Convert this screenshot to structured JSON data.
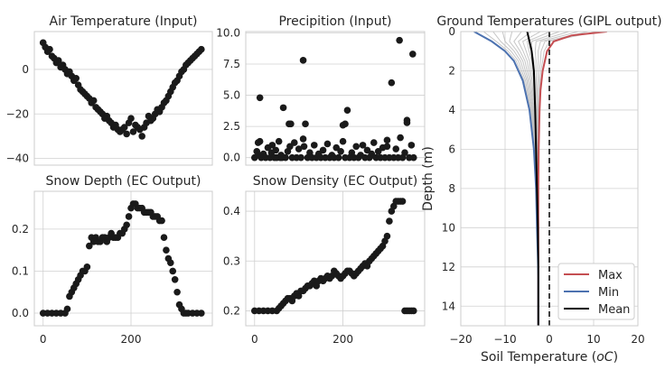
{
  "chart_data": [
    {
      "id": "air",
      "type": "scatter",
      "title": "Air Temperature (Input)",
      "xlabel": "",
      "ylabel": "",
      "xlim": [
        -20,
        385
      ],
      "ylim": [
        -43,
        17
      ],
      "xticks": [],
      "yticks": [
        0,
        -20,
        -40
      ],
      "ytick_labels": [
        "0",
        "−20",
        "−40"
      ],
      "x": [
        0,
        5,
        10,
        15,
        20,
        25,
        30,
        35,
        40,
        45,
        50,
        55,
        60,
        65,
        70,
        75,
        80,
        85,
        90,
        95,
        100,
        105,
        110,
        115,
        120,
        125,
        130,
        135,
        140,
        145,
        150,
        155,
        160,
        165,
        170,
        175,
        180,
        185,
        190,
        195,
        200,
        205,
        210,
        215,
        220,
        225,
        230,
        235,
        240,
        245,
        250,
        255,
        260,
        265,
        270,
        275,
        280,
        285,
        290,
        295,
        300,
        305,
        310,
        315,
        320,
        325,
        330,
        335,
        340,
        345,
        350,
        355,
        360
      ],
      "y": [
        12,
        10,
        8,
        9,
        6,
        5,
        3,
        4,
        1,
        2,
        0,
        -2,
        -1,
        -3,
        -5,
        -4,
        -7,
        -9,
        -10,
        -11,
        -12,
        -13,
        -15,
        -14,
        -17,
        -18,
        -19,
        -20,
        -22,
        -21,
        -23,
        -24,
        -26,
        -25,
        -27,
        -28,
        -27,
        -26,
        -29,
        -24,
        -22,
        -28,
        -25,
        -26,
        -27,
        -30,
        -26,
        -24,
        -21,
        -23,
        -22,
        -20,
        -18,
        -19,
        -17,
        -15,
        -14,
        -12,
        -10,
        -8,
        -6,
        -5,
        -3,
        -1,
        0,
        2,
        3,
        4,
        5,
        6,
        7,
        8,
        9
      ],
      "color": "#1a1a1a"
    },
    {
      "id": "precip",
      "type": "scatter",
      "title": "Precipition (Input)",
      "xlabel": "",
      "ylabel": "",
      "xlim": [
        -20,
        385
      ],
      "ylim": [
        -0.6,
        10.1
      ],
      "xticks": [],
      "yticks": [
        0.0,
        2.5,
        5.0,
        7.5,
        10.0
      ],
      "ytick_labels": [
        "0.0",
        "2.5",
        "5.0",
        "7.5",
        "10.0"
      ],
      "x": [
        0,
        5,
        8,
        10,
        12,
        15,
        20,
        25,
        30,
        35,
        38,
        40,
        45,
        48,
        50,
        55,
        58,
        60,
        62,
        65,
        70,
        75,
        80,
        85,
        90,
        95,
        100,
        105,
        110,
        115,
        120,
        125,
        130,
        135,
        140,
        145,
        150,
        155,
        160,
        165,
        170,
        175,
        180,
        185,
        190,
        195,
        200,
        205,
        210,
        215,
        220,
        225,
        230,
        235,
        240,
        245,
        250,
        255,
        260,
        265,
        270,
        275,
        280,
        285,
        290,
        295,
        300,
        305,
        310,
        315,
        320,
        325,
        330,
        335,
        340,
        345,
        350,
        355,
        360,
        12,
        78,
        82,
        110,
        112,
        200,
        205,
        300,
        328,
        345,
        358
      ],
      "y": [
        0,
        0.5,
        1.2,
        0.2,
        4.8,
        0,
        0.3,
        0,
        0.8,
        0,
        0.4,
        1.0,
        0,
        0.6,
        0,
        1.3,
        0,
        0.2,
        0,
        4.0,
        0,
        0.5,
        0.9,
        0,
        1.2,
        0,
        0.7,
        0,
        1.5,
        2.7,
        0,
        0.4,
        0,
        1.0,
        0,
        0.3,
        0,
        0.6,
        0,
        1.1,
        0,
        0.2,
        0,
        0.8,
        0,
        0.5,
        1.3,
        0,
        3.8,
        0,
        0.4,
        0,
        0.9,
        0,
        0.2,
        1.0,
        0,
        0.6,
        0,
        0.3,
        1.2,
        0,
        0.5,
        0,
        0.8,
        0,
        1.4,
        0,
        6.0,
        0,
        0.7,
        0,
        1.6,
        0,
        0.4,
        2.8,
        0,
        1.0,
        0,
        1.3,
        2.7,
        2.7,
        7.8,
        0.9,
        2.6,
        2.7,
        0.9,
        9.4,
        3.0,
        8.3
      ],
      "color": "#1a1a1a"
    },
    {
      "id": "snowdepth",
      "type": "scatter",
      "title": "Snow Depth (EC Output)",
      "xlabel": "",
      "ylabel": "",
      "xlim": [
        -20,
        385
      ],
      "ylim": [
        -0.03,
        0.29
      ],
      "xticks": [
        0,
        200
      ],
      "xtick_labels": [
        "0",
        "200"
      ],
      "yticks": [
        0.0,
        0.1,
        0.2
      ],
      "ytick_labels": [
        "0.0",
        "0.1",
        "0.2"
      ],
      "x": [
        0,
        10,
        20,
        30,
        40,
        50,
        55,
        60,
        65,
        70,
        75,
        80,
        85,
        90,
        95,
        100,
        105,
        110,
        115,
        120,
        125,
        130,
        135,
        140,
        145,
        150,
        155,
        160,
        165,
        170,
        175,
        180,
        185,
        190,
        195,
        200,
        205,
        210,
        215,
        220,
        225,
        230,
        235,
        240,
        245,
        250,
        255,
        260,
        265,
        270,
        275,
        280,
        285,
        290,
        295,
        300,
        305,
        310,
        315,
        320,
        325,
        330,
        340,
        350,
        360
      ],
      "y": [
        0,
        0,
        0,
        0,
        0,
        0,
        0.01,
        0.04,
        0.05,
        0.06,
        0.07,
        0.08,
        0.09,
        0.1,
        0.1,
        0.11,
        0.16,
        0.18,
        0.17,
        0.18,
        0.17,
        0.17,
        0.18,
        0.18,
        0.17,
        0.18,
        0.19,
        0.18,
        0.18,
        0.18,
        0.19,
        0.19,
        0.2,
        0.21,
        0.23,
        0.25,
        0.26,
        0.26,
        0.25,
        0.25,
        0.25,
        0.24,
        0.24,
        0.24,
        0.24,
        0.23,
        0.23,
        0.23,
        0.22,
        0.22,
        0.18,
        0.15,
        0.13,
        0.12,
        0.1,
        0.08,
        0.05,
        0.02,
        0.01,
        0,
        0,
        0,
        0,
        0,
        0
      ],
      "color": "#1a1a1a"
    },
    {
      "id": "snowdensity",
      "type": "scatter",
      "title": "Snow Density (EC Output)",
      "xlabel": "",
      "ylabel": "",
      "xlim": [
        -20,
        385
      ],
      "ylim": [
        0.17,
        0.44
      ],
      "xticks": [
        0,
        200
      ],
      "xtick_labels": [
        "0",
        "200"
      ],
      "yticks": [
        0.2,
        0.3,
        0.4
      ],
      "ytick_labels": [
        "0.2",
        "0.3",
        "0.4"
      ],
      "x": [
        0,
        10,
        20,
        30,
        40,
        50,
        55,
        60,
        65,
        70,
        75,
        80,
        85,
        90,
        95,
        100,
        105,
        110,
        115,
        120,
        125,
        130,
        135,
        140,
        145,
        150,
        155,
        160,
        165,
        170,
        175,
        180,
        185,
        190,
        195,
        200,
        205,
        210,
        215,
        220,
        225,
        230,
        235,
        240,
        245,
        250,
        255,
        260,
        265,
        270,
        275,
        280,
        285,
        290,
        295,
        300,
        305,
        310,
        315,
        320,
        325,
        330,
        335,
        340,
        345,
        350,
        355,
        360
      ],
      "y": [
        0.2,
        0.2,
        0.2,
        0.2,
        0.2,
        0.2,
        0.205,
        0.21,
        0.215,
        0.22,
        0.225,
        0.225,
        0.22,
        0.23,
        0.235,
        0.23,
        0.24,
        0.24,
        0.245,
        0.25,
        0.25,
        0.255,
        0.26,
        0.25,
        0.26,
        0.265,
        0.26,
        0.265,
        0.27,
        0.265,
        0.27,
        0.28,
        0.275,
        0.27,
        0.265,
        0.27,
        0.275,
        0.28,
        0.28,
        0.275,
        0.27,
        0.275,
        0.28,
        0.285,
        0.29,
        0.295,
        0.29,
        0.3,
        0.305,
        0.31,
        0.315,
        0.32,
        0.325,
        0.33,
        0.34,
        0.35,
        0.38,
        0.4,
        0.41,
        0.42,
        0.42,
        0.42,
        0.42,
        0.2,
        0.2,
        0.2,
        0.2,
        0.2
      ],
      "color": "#1a1a1a"
    },
    {
      "id": "ground",
      "type": "line",
      "title": "Ground Temperatures (GIPL output)",
      "xlabel": "Soil Temperature (",
      "xlabel_unit": "oC",
      "xlabel_end": ")",
      "ylabel": "Depth (m)",
      "xlim": [
        -20,
        20
      ],
      "ylim": [
        15,
        0
      ],
      "xticks": [
        -20,
        -10,
        0,
        10,
        20
      ],
      "xtick_labels": [
        "−20",
        "−10",
        "0",
        "10",
        "20"
      ],
      "yticks": [
        0,
        2,
        4,
        6,
        8,
        10,
        12,
        14
      ],
      "ytick_labels": [
        "0",
        "2",
        "4",
        "6",
        "8",
        "10",
        "12",
        "14"
      ],
      "legend_position": "lower-right",
      "series": [
        {
          "name": "Max",
          "color": "#c44e52",
          "x": [
            13,
            5,
            1,
            -0.5,
            -1.5,
            -2,
            -2.2,
            -2.4,
            -2.5,
            -2.5,
            -2.5,
            -2.5,
            -2.5
          ],
          "y": [
            0,
            0.2,
            0.5,
            1,
            2,
            3,
            4,
            6,
            8,
            10,
            12,
            14,
            15
          ]
        },
        {
          "name": "Min",
          "color": "#4c72b0",
          "x": [
            -17,
            -13,
            -10,
            -8,
            -6,
            -4.5,
            -3.5,
            -3,
            -2.8,
            -2.6,
            -2.5,
            -2.5,
            -2.5
          ],
          "y": [
            0,
            0.5,
            1,
            1.5,
            2.5,
            4,
            6,
            8,
            10,
            11.5,
            12.5,
            14,
            15
          ]
        },
        {
          "name": "Mean",
          "color": "#000000",
          "x": [
            -5,
            -4.5,
            -4,
            -3.5,
            -3.2,
            -3,
            -2.8,
            -2.6,
            -2.5,
            -2.5
          ],
          "y": [
            0,
            0.5,
            1,
            2,
            4,
            6,
            8,
            10,
            12,
            15
          ]
        }
      ],
      "reference_line_x": 0
    }
  ]
}
